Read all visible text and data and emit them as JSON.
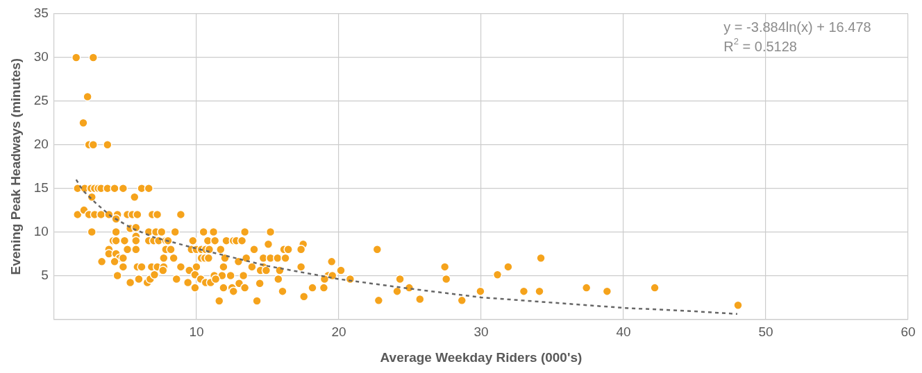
{
  "chart_data": {
    "type": "scatter",
    "xlabel": "Average Weekday Riders (000's)",
    "ylabel": "Evening Peak Headways (minutes)",
    "xlim": [
      0,
      60
    ],
    "xticks": [
      10,
      20,
      30,
      40,
      50,
      60
    ],
    "ylim": [
      0,
      35
    ],
    "yticks": [
      {
        "value": 0,
        "label": null
      },
      5,
      10,
      15,
      20,
      25,
      30,
      35
    ],
    "grid": true,
    "legend": false,
    "marker": "circle",
    "annotations": [
      "y = -3.884ln(x) + 16.478",
      "R$^{2}$ = 0.5128"
    ],
    "series": [
      {
        "color": "#f5a31c",
        "x": [
          1.55,
          2.75,
          2.35,
          2.05,
          2.45,
          2.75,
          3.75,
          1.65,
          2.15,
          2.6,
          2.85,
          3.1,
          3.3,
          3.75,
          4.25,
          4.85,
          6.15,
          6.65,
          2.65,
          5.65,
          1.65,
          2.1,
          2.45,
          2.85,
          3.3,
          3.85,
          4.45,
          5.15,
          5.5,
          5.85,
          6.9,
          7.25,
          8.9,
          4.35,
          2.65,
          4.35,
          5.35,
          5.75,
          6.65,
          7.15,
          7.55,
          8.5,
          10.5,
          11.2,
          13.4,
          15.2,
          5.75,
          4.15,
          4.35,
          4.95,
          5.75,
          6.65,
          7.0,
          7.35,
          7.85,
          8.0,
          3.85,
          5.15,
          5.75,
          7.85,
          8.2,
          9.65,
          10.0,
          10.35,
          10.65,
          10.9,
          3.85,
          4.35,
          4.6,
          4.85,
          7.7,
          8.4,
          10.35,
          10.6,
          10.85,
          3.35,
          4.25,
          4.85,
          5.85,
          6.15,
          6.85,
          7.25,
          7.7,
          8.9,
          10.0,
          7.65,
          9.5,
          9.9,
          4.45,
          10.3,
          10.65,
          11.0,
          5.35,
          5.95,
          6.55,
          6.75,
          7.05,
          8.6,
          9.4,
          9.9,
          9.75,
          10.8,
          11.3,
          12.1,
          12.6,
          12.8,
          13.2,
          15.05,
          17.5,
          11.7,
          16.15,
          16.45,
          17.35,
          14.05,
          12.0,
          13.5,
          14.7,
          15.2,
          15.7,
          16.25,
          12.95,
          11.9,
          13.9,
          14.7,
          17.35,
          19.5,
          14.5,
          14.9,
          15.85,
          11.25,
          11.8,
          12.4,
          13.3,
          19.25,
          19.55,
          19.0,
          11.35,
          15.75,
          13.0,
          14.45,
          11.9,
          12.5,
          13.4,
          18.15,
          18.95,
          12.6,
          16.05,
          11.6,
          14.25,
          17.55,
          20.15,
          20.8,
          22.7,
          22.8,
          24.3,
          24.1,
          24.95,
          25.7,
          27.45,
          27.55,
          28.65,
          29.95,
          31.15,
          31.9,
          33.0,
          34.1,
          34.2,
          37.4,
          38.85,
          42.2,
          48.05
        ],
        "values": [
          30,
          30,
          25.5,
          22.5,
          20,
          20,
          20,
          15,
          15,
          15,
          15,
          15,
          15,
          15,
          15,
          15,
          15,
          15,
          14,
          14,
          12,
          12.5,
          12,
          12,
          12,
          12,
          12,
          12,
          12,
          12,
          12,
          12,
          12,
          11.5,
          10,
          10,
          10.4,
          10.5,
          10,
          10,
          10,
          10,
          10,
          10,
          10,
          10,
          9.5,
          9,
          9,
          9,
          9,
          9,
          9,
          9,
          9,
          9,
          8,
          8,
          8,
          8,
          8,
          8,
          8,
          8,
          8,
          8,
          7.5,
          7.5,
          7,
          7,
          7,
          7,
          7,
          7,
          7,
          6.6,
          6.6,
          6,
          6,
          6,
          6,
          6,
          6,
          6,
          6,
          5.6,
          5.6,
          5.1,
          5,
          4.6,
          4.2,
          4.2,
          4.2,
          4.6,
          4.2,
          4.6,
          5.1,
          4.6,
          4.2,
          3.6,
          9,
          9,
          9,
          9,
          9,
          9,
          9,
          8.6,
          8.6,
          8,
          8,
          8,
          8,
          8,
          7,
          7,
          7,
          7,
          7,
          7,
          6.6,
          6,
          6,
          6,
          6,
          6.6,
          5.6,
          5.6,
          5.6,
          5,
          5,
          5,
          5,
          5,
          5,
          4.6,
          4.6,
          4.6,
          4.1,
          4.1,
          3.6,
          3.6,
          3.6,
          3.6,
          3.6,
          3.2,
          3.2,
          2.1,
          2.1,
          2.6,
          5.6,
          4.6,
          8,
          2.15,
          4.6,
          3.2,
          3.6,
          2.3,
          6,
          4.6,
          2.15,
          3.2,
          5.1,
          6,
          3.2,
          3.2,
          7,
          3.6,
          3.2,
          3.6,
          1.6
        ]
      },
      {
        "type": "line",
        "color": "#666666",
        "line_style": "dashed",
        "marker": "none",
        "x": [
          1.55,
          2,
          3,
          4,
          5.5,
          7,
          10,
          15,
          20,
          25,
          30,
          35,
          40,
          45,
          48
        ],
        "values": [
          16,
          14.8,
          13.2,
          11.8,
          10.4,
          9.4,
          8.1,
          6.1,
          4.6,
          3.5,
          2.5,
          1.9,
          1.3,
          0.9,
          0.6
        ]
      }
    ]
  }
}
